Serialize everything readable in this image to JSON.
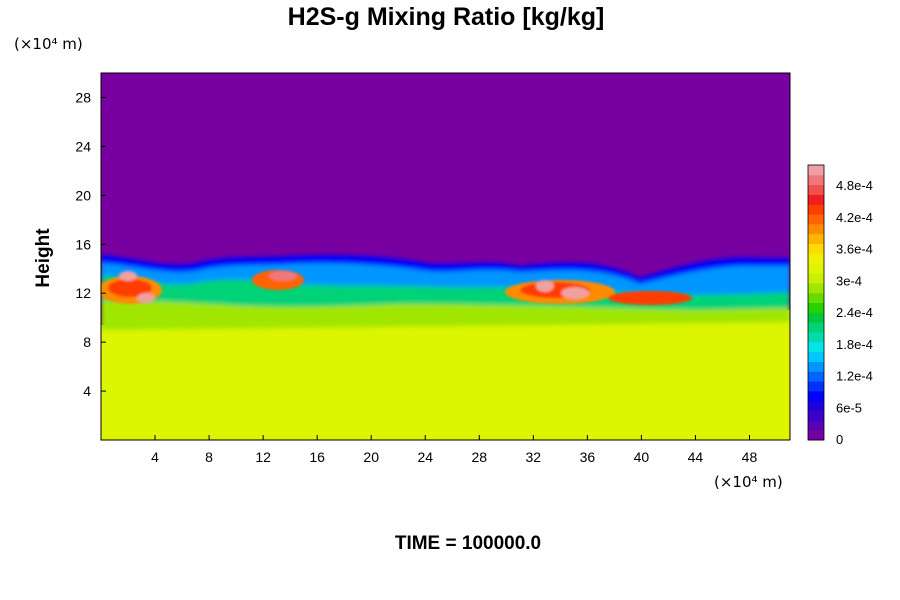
{
  "chart_data": {
    "type": "heatmap",
    "title": "H2S-g Mixing Ratio [kg/kg]",
    "ylabel": "Height",
    "xunit": "(×10⁴ m)",
    "yunit": "(×10⁴ m)",
    "xlim": [
      0,
      51
    ],
    "ylim": [
      0,
      30
    ],
    "xticks": [
      4,
      8,
      12,
      16,
      20,
      24,
      28,
      32,
      36,
      40,
      44,
      48
    ],
    "yticks": [
      4,
      8,
      12,
      16,
      20,
      24,
      28
    ],
    "xtick_labels": [
      "4",
      "8",
      "12",
      "16",
      "20",
      "24",
      "28",
      "32",
      "36",
      "40",
      "44",
      "48"
    ],
    "ytick_labels": [
      "4",
      "8",
      "12",
      "16",
      "20",
      "24",
      "28"
    ],
    "colorbar": {
      "min": 0,
      "max": 0.00052,
      "levels": [
        "#7800a0",
        "#5a00b4",
        "#3c00c8",
        "#1e00dc",
        "#0000ff",
        "#0032ff",
        "#0064ff",
        "#0096ff",
        "#00c8ff",
        "#00e6e6",
        "#00dcaa",
        "#00d278",
        "#00c83c",
        "#28d200",
        "#64dc00",
        "#a0e600",
        "#c8f000",
        "#dcf500",
        "#f0f000",
        "#ffdc00",
        "#ffb400",
        "#ff8c00",
        "#ff6400",
        "#ff3c00",
        "#f01e1e",
        "#f05050",
        "#f07878",
        "#f0a0a0"
      ],
      "tick_labels": [
        "0",
        "6e-5",
        "1.2e-4",
        "1.8e-4",
        "2.4e-4",
        "3e-4",
        "3.6e-4",
        "4.2e-4",
        "4.8e-4"
      ]
    },
    "regions": {
      "lower_layer_value": 0.00033,
      "upper_layer_value": 0,
      "interface_height": 12,
      "hotspots_x": [
        2,
        11,
        34
      ]
    },
    "time_label": "TIME = 100000.0"
  }
}
